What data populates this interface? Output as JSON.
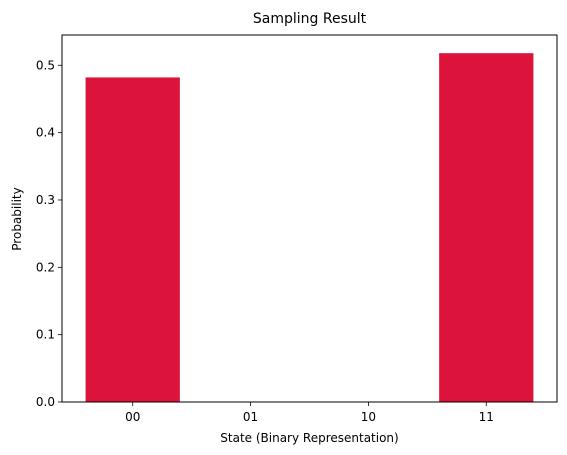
{
  "chart_data": {
    "type": "bar",
    "title": "Sampling Result",
    "xlabel": "State (Binary Representation)",
    "ylabel": "Probability",
    "categories": [
      "00",
      "01",
      "10",
      "11"
    ],
    "values": [
      0.482,
      0.0,
      0.0,
      0.518
    ],
    "ylim": [
      0,
      0.545
    ],
    "yticks": [
      0.0,
      0.1,
      0.2,
      0.3,
      0.4,
      0.5
    ],
    "ytick_labels": [
      "0.0",
      "0.1",
      "0.2",
      "0.3",
      "0.4",
      "0.5"
    ],
    "bar_color": "#dc143c",
    "grid": false,
    "legend": "none"
  }
}
